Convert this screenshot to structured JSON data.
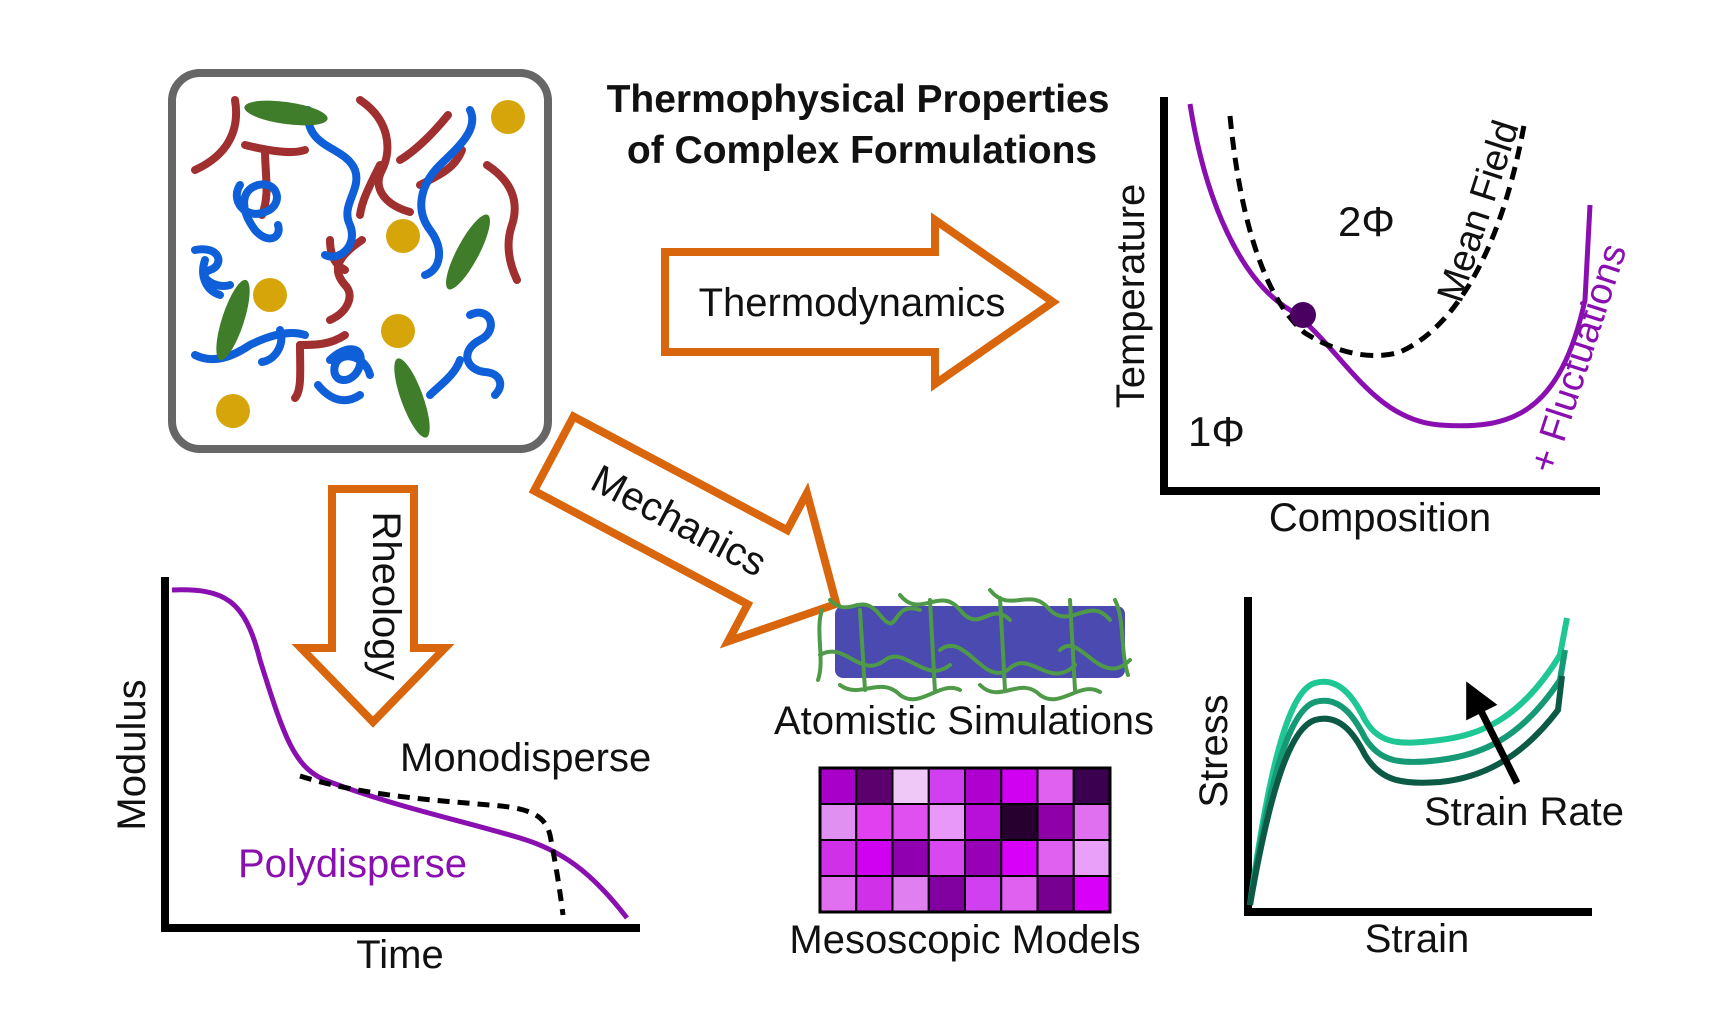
{
  "title": {
    "line1": "Thermophysical Properties",
    "line2": "of Complex Formulations"
  },
  "arrows": {
    "thermodynamics": "Thermodynamics",
    "rheology": "Rheology",
    "mechanics": "Mechanics"
  },
  "phase_diagram": {
    "x_label": "Composition",
    "y_label": "Temperature",
    "two_phase": "2Φ",
    "one_phase": "1Φ",
    "mean_field": "Mean Field",
    "fluctuations": "+ Fluctuations"
  },
  "rheology_plot": {
    "x_label": "Time",
    "y_label": "Modulus",
    "mono": "Monodisperse",
    "poly": "Polydisperse"
  },
  "simulation": {
    "atomistic": "Atomistic Simulations",
    "mesoscopic": "Mesoscopic Models"
  },
  "stress_plot": {
    "x_label": "Strain",
    "y_label": "Stress",
    "arrow_label": "Strain Rate"
  },
  "colors": {
    "orange": "#d9650c",
    "purple": "#8a0fb0",
    "red_polymer": "#a02f2f",
    "blue_polymer": "#0e5fd8",
    "green_ellipse": "#3f7d2a",
    "yellow_particle": "#d6a50a"
  },
  "meso_grid_colors": [
    [
      "#a800c8",
      "#5c006e",
      "#f0c8f8",
      "#d040f0",
      "#b000d0",
      "#d000f0",
      "#e060f0",
      "#3c0050"
    ],
    [
      "#e090f0",
      "#e040f0",
      "#e050f0",
      "#e898f8",
      "#b810d8",
      "#280030",
      "#9000a8",
      "#e070f0"
    ],
    [
      "#d030e8",
      "#d000f0",
      "#9000b0",
      "#d848f0",
      "#9800b8",
      "#d800f8",
      "#e060f0",
      "#e8a0f8"
    ],
    [
      "#e070f0",
      "#d030e8",
      "#e080f0",
      "#8000a0",
      "#d040f0",
      "#e060f0",
      "#780090",
      "#d800f8"
    ]
  ]
}
